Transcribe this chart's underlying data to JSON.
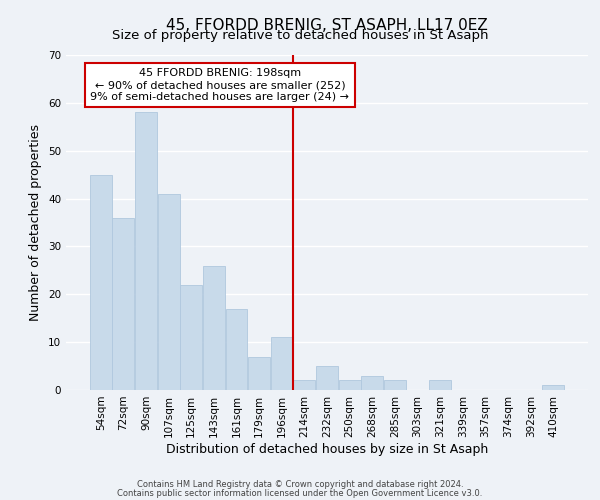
{
  "title": "45, FFORDD BRENIG, ST ASAPH, LL17 0EZ",
  "subtitle": "Size of property relative to detached houses in St Asaph",
  "xlabel": "Distribution of detached houses by size in St Asaph",
  "ylabel": "Number of detached properties",
  "bar_color": "#c8daea",
  "bar_edge_color": "#b0c8de",
  "bins": [
    "54sqm",
    "72sqm",
    "90sqm",
    "107sqm",
    "125sqm",
    "143sqm",
    "161sqm",
    "179sqm",
    "196sqm",
    "214sqm",
    "232sqm",
    "250sqm",
    "268sqm",
    "285sqm",
    "303sqm",
    "321sqm",
    "339sqm",
    "357sqm",
    "374sqm",
    "392sqm",
    "410sqm"
  ],
  "values": [
    45,
    36,
    58,
    41,
    22,
    26,
    17,
    7,
    11,
    2,
    5,
    2,
    3,
    2,
    0,
    2,
    0,
    0,
    0,
    0,
    1
  ],
  "marker_bin_index": 8,
  "marker_color": "#cc0000",
  "annotation_title": "45 FFORDD BRENIG: 198sqm",
  "annotation_line1": "← 90% of detached houses are smaller (252)",
  "annotation_line2": "9% of semi-detached houses are larger (24) →",
  "annotation_box_color": "#ffffff",
  "annotation_box_edge": "#cc0000",
  "ylim": [
    0,
    70
  ],
  "yticks": [
    0,
    10,
    20,
    30,
    40,
    50,
    60,
    70
  ],
  "footnote1": "Contains HM Land Registry data © Crown copyright and database right 2024.",
  "footnote2": "Contains public sector information licensed under the Open Government Licence v3.0.",
  "background_color": "#eef2f7",
  "title_fontsize": 11,
  "subtitle_fontsize": 9.5,
  "tick_fontsize": 7.5,
  "ylabel_fontsize": 9,
  "xlabel_fontsize": 9,
  "footnote_fontsize": 6
}
